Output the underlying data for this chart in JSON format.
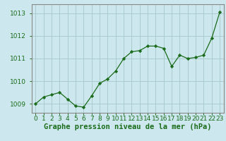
{
  "x": [
    0,
    1,
    2,
    3,
    4,
    5,
    6,
    7,
    8,
    9,
    10,
    11,
    12,
    13,
    14,
    15,
    16,
    17,
    18,
    19,
    20,
    21,
    22,
    23
  ],
  "y": [
    1009.0,
    1009.3,
    1009.4,
    1009.5,
    1009.2,
    1008.9,
    1008.85,
    1009.35,
    1009.9,
    1010.1,
    1010.45,
    1011.0,
    1011.3,
    1011.35,
    1011.55,
    1011.55,
    1011.45,
    1010.65,
    1011.15,
    1011.0,
    1011.05,
    1011.15,
    1011.9,
    1013.05
  ],
  "line_color": "#1a6b1a",
  "marker": "D",
  "marker_size": 2.2,
  "bg_color": "#cce8ee",
  "grid_color": "#aacccc",
  "xlabel": "Graphe pression niveau de la mer (hPa)",
  "xlabel_color": "#1a6b1a",
  "xtick_labels": [
    "0",
    "1",
    "2",
    "3",
    "4",
    "5",
    "6",
    "7",
    "8",
    "9",
    "10",
    "11",
    "12",
    "13",
    "14",
    "15",
    "16",
    "17",
    "18",
    "19",
    "20",
    "21",
    "22",
    "23"
  ],
  "ylim": [
    1008.6,
    1013.4
  ],
  "yticks": [
    1009,
    1010,
    1011,
    1012,
    1013
  ],
  "tick_color": "#1a6b1a",
  "border_color": "#888888",
  "tick_fontsize": 6.5,
  "xlabel_fontsize": 7.5
}
